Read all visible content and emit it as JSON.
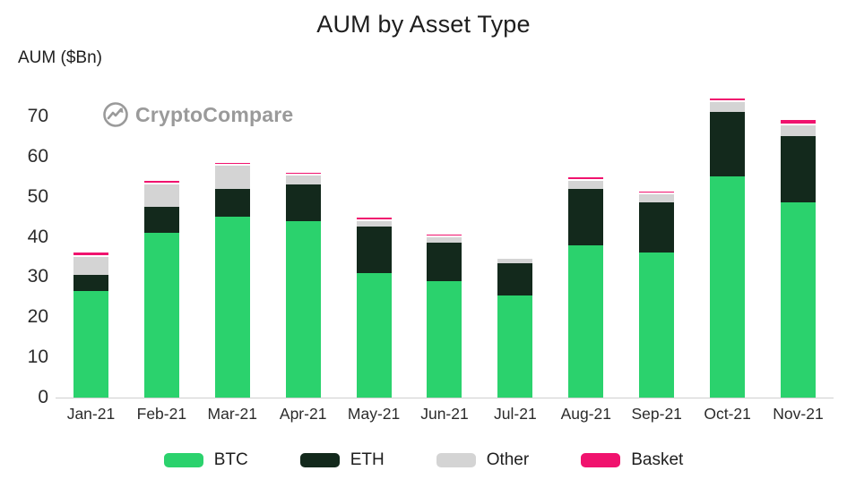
{
  "watermark": {
    "text": "CryptoCompare"
  },
  "chart_data": {
    "type": "bar",
    "stacked": true,
    "title": "AUM by Asset Type",
    "ylabel": "AUM ($Bn)",
    "xlabel": "",
    "categories": [
      "Jan-21",
      "Feb-21",
      "Mar-21",
      "Apr-21",
      "May-21",
      "Jun-21",
      "Jul-21",
      "Aug-21",
      "Sep-21",
      "Oct-21",
      "Nov-21"
    ],
    "series": [
      {
        "name": "BTC",
        "color": "#2bd26d",
        "values": [
          26.5,
          41,
          45,
          44,
          31,
          29,
          25.5,
          38,
          36,
          55,
          48.5
        ]
      },
      {
        "name": "ETH",
        "color": "#13291c",
        "values": [
          4,
          6.5,
          7,
          9,
          11.5,
          9.5,
          8,
          14,
          12.5,
          16,
          16.5
        ]
      },
      {
        "name": "Other",
        "color": "#d4d4d4",
        "values": [
          4.5,
          5.5,
          5.8,
          2.2,
          1.5,
          1.5,
          1,
          2,
          2,
          2.5,
          2.8
        ]
      },
      {
        "name": "Basket",
        "color": "#f0136e",
        "values": [
          1,
          1,
          0.7,
          0.8,
          0.8,
          0.6,
          0.6,
          0.8,
          0.8,
          1,
          1.2
        ]
      }
    ],
    "yticks": [
      0,
      10,
      20,
      30,
      40,
      50,
      60,
      70
    ],
    "ylim": [
      0,
      78
    ],
    "grid": false,
    "legend_position": "bottom"
  }
}
